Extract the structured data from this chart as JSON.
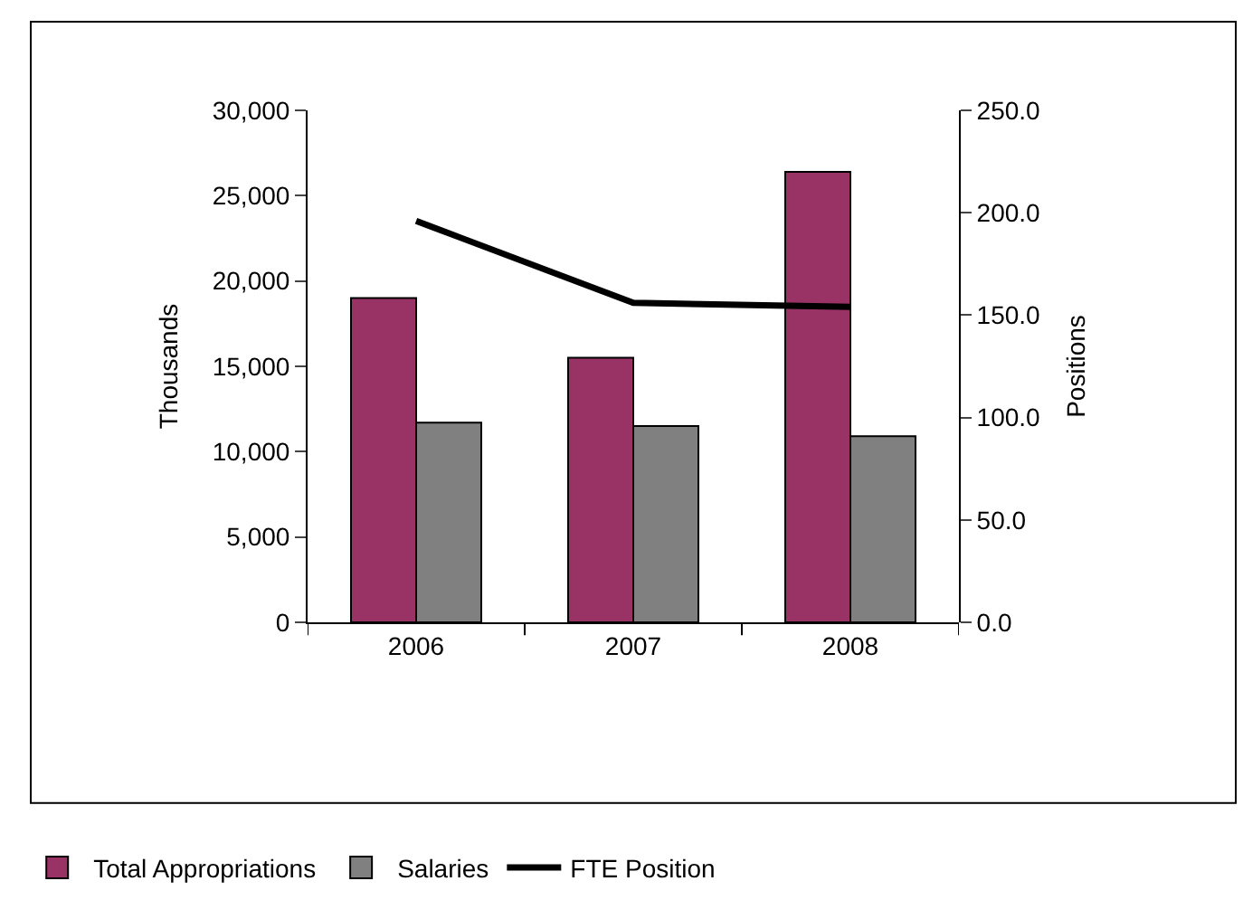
{
  "chart_data": {
    "type": "bar",
    "categories": [
      "2006",
      "2007",
      "2008"
    ],
    "ylabel": "Thousands",
    "y2label": "Positions",
    "series": [
      {
        "name": "Total Appropriations",
        "color": "#993366",
        "values": [
          19000,
          15500,
          26400
        ]
      },
      {
        "name": "Salaries",
        "color": "#808080",
        "values": [
          11700,
          11500,
          10900
        ]
      },
      {
        "name": "FTE Position",
        "color": "#000000",
        "type": "line",
        "axis": "y2",
        "values": [
          196,
          156,
          154
        ]
      }
    ],
    "ylim": [
      0,
      30000
    ],
    "yticks": [
      {
        "value": 0,
        "label": "0"
      },
      {
        "value": 5000,
        "label": "5,000"
      },
      {
        "value": 10000,
        "label": "10,000"
      },
      {
        "value": 15000,
        "label": "15,000"
      },
      {
        "value": 20000,
        "label": "20,000"
      },
      {
        "value": 25000,
        "label": "25,000"
      },
      {
        "value": 30000,
        "label": "30,000"
      }
    ],
    "y2lim": [
      0,
      250
    ],
    "y2ticks": [
      {
        "value": 0,
        "label": "0.0"
      },
      {
        "value": 50,
        "label": "50.0"
      },
      {
        "value": 100,
        "label": "100.0"
      },
      {
        "value": 150,
        "label": "150.0"
      },
      {
        "value": 200,
        "label": "200.0"
      },
      {
        "value": 250,
        "label": "250.0"
      }
    ],
    "legend": "bottom",
    "marker": "none",
    "line_style": "solid"
  }
}
